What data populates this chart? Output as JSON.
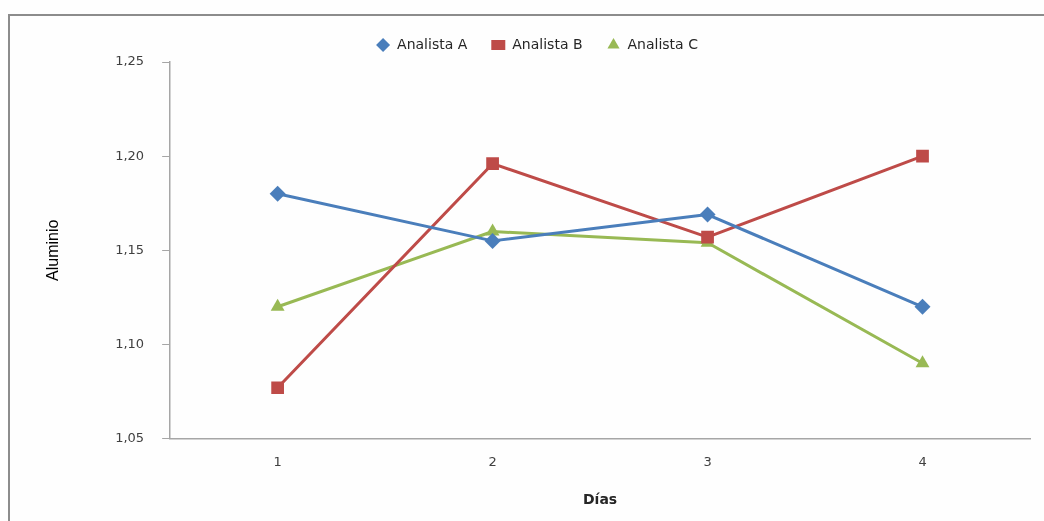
{
  "chart_data": {
    "type": "line",
    "xlabel": "Días",
    "ylabel": "Aluminio",
    "categories": [
      "1",
      "2",
      "3",
      "4"
    ],
    "series": [
      {
        "name": "Analista A",
        "color": "#4a7ebb",
        "marker": "diamond",
        "values": [
          1.18,
          1.155,
          1.169,
          1.12
        ]
      },
      {
        "name": "Analista B",
        "color": "#be4b48",
        "marker": "square",
        "values": [
          1.077,
          1.196,
          1.157,
          1.2
        ]
      },
      {
        "name": "Analista C",
        "color": "#98b954",
        "marker": "triangle",
        "values": [
          1.12,
          1.16,
          1.154,
          1.09
        ]
      }
    ],
    "ylim": [
      1.05,
      1.25
    ],
    "yticks": [
      {
        "value": 1.05,
        "label": "1,05"
      },
      {
        "value": 1.1,
        "label": "1,10"
      },
      {
        "value": 1.15,
        "label": "1,15"
      },
      {
        "value": 1.2,
        "label": "1,20"
      },
      {
        "value": 1.25,
        "label": "1,25"
      }
    ],
    "legend": "top"
  }
}
